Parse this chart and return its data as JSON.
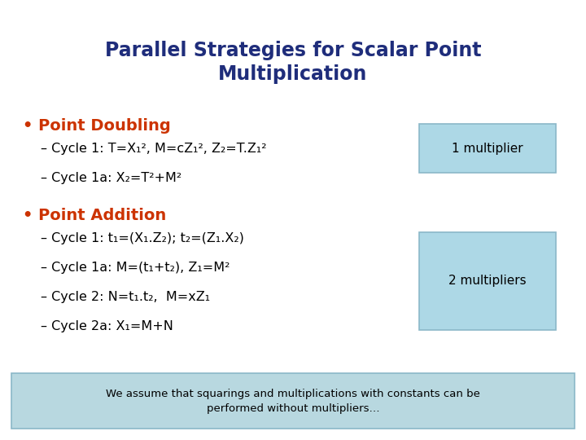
{
  "title": "Parallel Strategies for Scalar Point\nMultiplication",
  "title_color": "#1F2D7B",
  "title_fontsize": 17,
  "bg_color": "#FFFFFF",
  "bullet_color": "#CC3300",
  "text_color": "#000000",
  "box_fill": "#ADD8E6",
  "box_edge": "#8BB8C8",
  "footer_fill": "#B8D8E0",
  "footer_edge": "#8BB8C8",
  "bullet1": "Point Doubling",
  "bullet1_lines": [
    "– Cycle 1: T=X₁², M=cZ₁², Z₂=T.Z₁²",
    "– Cycle 1a: X₂=T²+M²"
  ],
  "box1_text": "1 multiplier",
  "bullet2": "Point Addition",
  "bullet2_lines": [
    "– Cycle 1: t₁=(X₁.Z₂); t₂=(Z₁.X₂)",
    "– Cycle 1a: M=(t₁+t₂), Z₁=M²",
    "– Cycle 2: N=t₁.t₂,  M=xZ₁",
    "– Cycle 2a: X₁=M+N"
  ],
  "box2_text": "2 multipliers",
  "footer_text": "We assume that squarings and multiplications with constants can be\nperformed without multipliers…"
}
